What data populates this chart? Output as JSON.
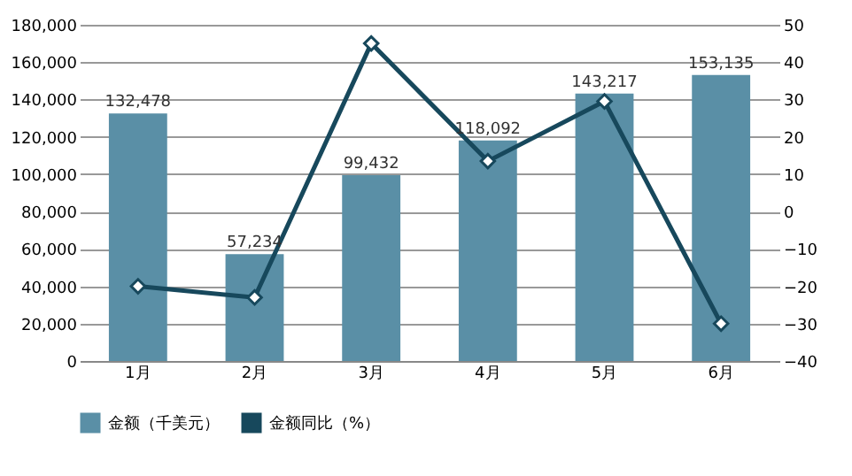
{
  "chart_data": {
    "type": "bar",
    "categories": [
      "1月",
      "2月",
      "3月",
      "4月",
      "5月",
      "6月"
    ],
    "series": [
      {
        "name": "金额（千美元）",
        "color": "#5a8fa6",
        "values": [
          132478,
          57234,
          99432,
          118092,
          143217,
          153135
        ],
        "value_labels": [
          "132,478",
          "57,234",
          "99,432",
          "118,092",
          "143,217",
          "153,135"
        ]
      },
      {
        "name": "金额同比（%）",
        "type": "line",
        "axis": "y2",
        "color": "#17485c",
        "marker": "diamond",
        "values": [
          -20,
          -23,
          45,
          13.5,
          29.5,
          -30
        ]
      }
    ],
    "ylim": [
      0,
      180000
    ],
    "yticks": [
      {
        "value": 0,
        "label": "0"
      },
      {
        "value": 20000,
        "label": "20,000"
      },
      {
        "value": 40000,
        "label": "40,000"
      },
      {
        "value": 60000,
        "label": "60,000"
      },
      {
        "value": 80000,
        "label": "80,000"
      },
      {
        "value": 100000,
        "label": "100,000"
      },
      {
        "value": 120000,
        "label": "120,000"
      },
      {
        "value": 140000,
        "label": "140,000"
      },
      {
        "value": 160000,
        "label": "160,000"
      },
      {
        "value": 180000,
        "label": "180,000"
      }
    ],
    "y2lim": [
      -40,
      50
    ],
    "y2ticks": [
      -40,
      -30,
      -20,
      -10,
      0,
      10,
      20,
      30,
      40,
      50
    ],
    "grid": "y",
    "legend": "bottom"
  }
}
